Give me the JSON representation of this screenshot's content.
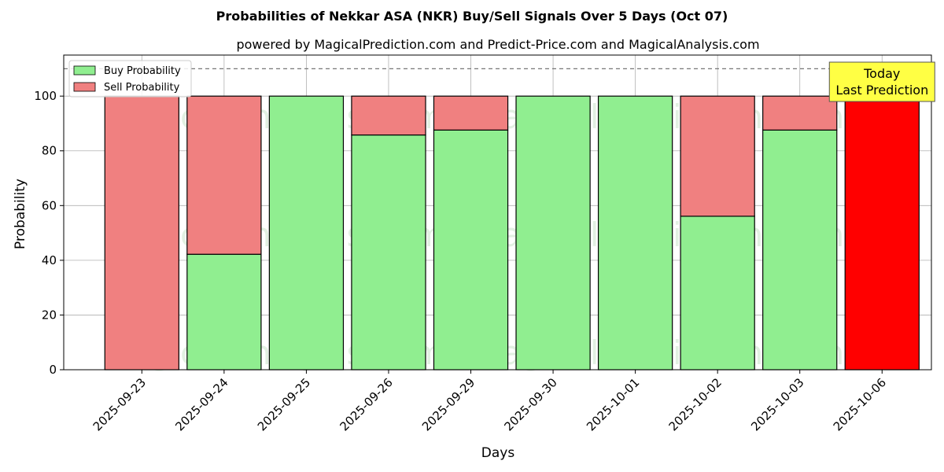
{
  "chart_data": {
    "type": "bar",
    "stacked": true,
    "title": "Probabilities of Nekkar ASA (NKR) Buy/Sell Signals Over 5 Days (Oct 07)",
    "subtitle": "powered by MagicalPrediction.com and Predict-Price.com and MagicalAnalysis.com",
    "xlabel": "Days",
    "ylabel": "Probability",
    "ylim": [
      0,
      115
    ],
    "yticks": [
      0,
      20,
      40,
      60,
      80,
      100
    ],
    "reference_line": 110,
    "grid": true,
    "legend_placement": "top-left",
    "categories": [
      "2025-09-23",
      "2025-09-24",
      "2025-09-25",
      "2025-09-26",
      "2025-09-29",
      "2025-09-30",
      "2025-10-01",
      "2025-10-02",
      "2025-10-03",
      "2025-10-06"
    ],
    "series": [
      {
        "name": "Buy Probability",
        "color": "#90ee90",
        "values": [
          0,
          42.2,
          100,
          85.8,
          87.6,
          100,
          100,
          56.1,
          87.6,
          0
        ]
      },
      {
        "name": "Sell Probability",
        "color": "#f08080",
        "values": [
          100,
          57.8,
          0,
          14.2,
          12.4,
          0,
          0,
          43.9,
          12.4,
          100
        ]
      }
    ],
    "highlight": {
      "category": "2025-10-06",
      "color": "#ff0000"
    },
    "annotation": {
      "lines": [
        "Today",
        "Last Prediction"
      ],
      "background": "#ffff44"
    },
    "watermarks": [
      "MagicalAnalysis.com",
      "MagicalPrediction.com"
    ]
  }
}
